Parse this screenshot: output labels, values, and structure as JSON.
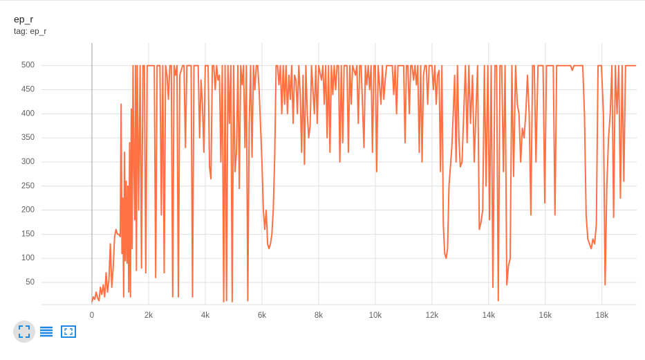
{
  "chart_data": {
    "type": "line",
    "title": "ep_r",
    "subtitle": "tag: ep_r",
    "color": "#ff7043",
    "grid": true,
    "xlim": [
      -1780,
      19200
    ],
    "ylim": [
      4,
      547
    ],
    "xticks": [
      0,
      {
        "value": 2000,
        "label": "2k"
      },
      {
        "value": 4000,
        "label": "4k"
      },
      {
        "value": 6000,
        "label": "6k"
      },
      {
        "value": 8000,
        "label": "8k"
      },
      {
        "value": 10000,
        "label": "10k"
      },
      {
        "value": 12000,
        "label": "12k"
      },
      {
        "value": 14000,
        "label": "14k"
      },
      {
        "value": 16000,
        "label": "16k"
      },
      {
        "value": 18000,
        "label": "18k"
      }
    ],
    "yticks": [
      50,
      100,
      150,
      200,
      250,
      300,
      350,
      400,
      450,
      500
    ],
    "x": [
      0,
      50,
      100,
      150,
      200,
      250,
      300,
      350,
      400,
      450,
      500,
      550,
      600,
      650,
      700,
      750,
      800,
      850,
      900,
      950,
      1000,
      1030,
      1060,
      1090,
      1120,
      1150,
      1180,
      1210,
      1240,
      1270,
      1300,
      1330,
      1360,
      1390,
      1420,
      1450,
      1480,
      1510,
      1540,
      1570,
      1600,
      1650,
      1700,
      1750,
      1800,
      1850,
      1900,
      1950,
      2000,
      2100,
      2200,
      2250,
      2300,
      2400,
      2450,
      2500,
      2550,
      2600,
      2650,
      2700,
      2750,
      2800,
      2850,
      2900,
      2950,
      3000,
      3050,
      3100,
      3150,
      3200,
      3250,
      3300,
      3350,
      3400,
      3500,
      3550,
      3600,
      3700,
      3750,
      3800,
      3850,
      3900,
      3950,
      4000,
      4100,
      4150,
      4200,
      4250,
      4300,
      4350,
      4400,
      4450,
      4500,
      4550,
      4600,
      4650,
      4700,
      4750,
      4800,
      4850,
      4900,
      4950,
      5000,
      5050,
      5100,
      5150,
      5200,
      5250,
      5300,
      5350,
      5400,
      5450,
      5500,
      5550,
      5600,
      5650,
      5700,
      5750,
      5800,
      5850,
      5900,
      6000,
      6050,
      6100,
      6150,
      6200,
      6250,
      6300,
      6350,
      6400,
      6450,
      6500,
      6550,
      6600,
      6650,
      6700,
      6750,
      6800,
      6850,
      6900,
      6950,
      7000,
      7050,
      7100,
      7150,
      7200,
      7250,
      7300,
      7350,
      7400,
      7450,
      7500,
      7550,
      7600,
      7650,
      7700,
      7750,
      7800,
      7850,
      7900,
      7950,
      8000,
      8100,
      8150,
      8200,
      8250,
      8300,
      8350,
      8400,
      8450,
      8500,
      8550,
      8600,
      8650,
      8700,
      8750,
      8800,
      8850,
      8900,
      9000,
      9050,
      9100,
      9150,
      9200,
      9300,
      9350,
      9400,
      9450,
      9500,
      9600,
      9650,
      9700,
      9750,
      9800,
      9850,
      9900,
      9950,
      10000,
      10050,
      10100,
      10200,
      10250,
      10300,
      10350,
      10400,
      10450,
      10500,
      10550,
      10600,
      10650,
      10700,
      10750,
      10800,
      10900,
      11000,
      11050,
      11100,
      11150,
      11200,
      11250,
      11300,
      11350,
      11400,
      11450,
      11500,
      11550,
      11600,
      11650,
      11700,
      11750,
      11800,
      11850,
      11900,
      12000,
      12050,
      12100,
      12150,
      12200,
      12250,
      12300,
      12350,
      12400,
      12450,
      12500,
      12550,
      12600,
      12700,
      12750,
      12800,
      12850,
      12900,
      12950,
      13000,
      13060,
      13120,
      13180,
      13240,
      13300,
      13360,
      13430,
      13490,
      13550,
      13610,
      13670,
      13730,
      13790,
      13850,
      13910,
      13970,
      14030,
      14090,
      14150,
      14220,
      14280,
      14340,
      14400,
      14460,
      14520,
      14580,
      14640,
      14700,
      14760,
      14820,
      14880,
      14950,
      15010,
      15070,
      15130,
      15190,
      15250,
      15310,
      15370,
      15430,
      15490,
      15550,
      15610,
      15670,
      15740,
      15920,
      15980,
      16040,
      16280,
      16340,
      16400,
      16650,
      16890,
      16950,
      17010,
      17320,
      17380,
      17440,
      17500,
      17560,
      17620,
      17680,
      17740,
      17800,
      17860,
      17980,
      18050,
      18110,
      18170,
      18230,
      18290,
      18350,
      18410,
      18470,
      18530,
      18590,
      18650,
      18710,
      18770,
      18830,
      18950,
      19080,
      19200
    ],
    "values": [
      10,
      20,
      15,
      30,
      18,
      12,
      40,
      25,
      45,
      20,
      70,
      30,
      55,
      130,
      40,
      80,
      145,
      160,
      150,
      150,
      145,
      420,
      110,
      225,
      20,
      320,
      95,
      260,
      90,
      250,
      30,
      340,
      20,
      410,
      120,
      500,
      300,
      180,
      500,
      75,
      500,
      200,
      500,
      80,
      500,
      500,
      70,
      500,
      500,
      500,
      500,
      60,
      500,
      500,
      190,
      500,
      70,
      500,
      480,
      430,
      500,
      500,
      20,
      500,
      480,
      500,
      20,
      480,
      490,
      500,
      500,
      330,
      500,
      500,
      500,
      20,
      500,
      500,
      500,
      350,
      470,
      420,
      320,
      500,
      500,
      290,
      265,
      500,
      500,
      450,
      500,
      470,
      480,
      300,
      500,
      10,
      500,
      12,
      500,
      380,
      500,
      10,
      500,
      280,
      320,
      500,
      245,
      500,
      460,
      500,
      330,
      500,
      12,
      380,
      500,
      310,
      500,
      450,
      500,
      500,
      450,
      300,
      200,
      160,
      200,
      130,
      120,
      130,
      150,
      200,
      310,
      500,
      500,
      460,
      500,
      400,
      500,
      420,
      500,
      400,
      480,
      430,
      500,
      380,
      480,
      470,
      400,
      500,
      440,
      320,
      480,
      295,
      500,
      400,
      350,
      375,
      500,
      450,
      400,
      500,
      380,
      500,
      470,
      500,
      420,
      500,
      350,
      500,
      320,
      500,
      440,
      500,
      450,
      500,
      500,
      300,
      500,
      340,
      500,
      500,
      320,
      500,
      420,
      500,
      480,
      500,
      380,
      500,
      500,
      330,
      500,
      460,
      500,
      450,
      500,
      320,
      500,
      500,
      280,
      500,
      420,
      500,
      430,
      470,
      500,
      500,
      500,
      500,
      500,
      440,
      500,
      400,
      500,
      500,
      500,
      340,
      500,
      500,
      400,
      500,
      500,
      470,
      500,
      460,
      500,
      320,
      500,
      300,
      480,
      500,
      500,
      420,
      500,
      500,
      450,
      500,
      420,
      480,
      490,
      280,
      500,
      170,
      110,
      100,
      120,
      250,
      330,
      400,
      480,
      300,
      500,
      350,
      290,
      300,
      400,
      500,
      340,
      500,
      380,
      480,
      300,
      400,
      500,
      160,
      175,
      200,
      500,
      250,
      500,
      180,
      500,
      40,
      500,
      500,
      12,
      500,
      500,
      280,
      500,
      45,
      85,
      100,
      500,
      270,
      500,
      420,
      400,
      300,
      370,
      350,
      400,
      480,
      400,
      190,
      500,
      500,
      300,
      500,
      500,
      215,
      500,
      500,
      190,
      500,
      500,
      500,
      490,
      500,
      500,
      400,
      190,
      140,
      130,
      120,
      140,
      130,
      170,
      500,
      500,
      400,
      45,
      250,
      350,
      400,
      500,
      185,
      500,
      400,
      500,
      225,
      500,
      260,
      500,
      500,
      500,
      500
    ]
  }
}
